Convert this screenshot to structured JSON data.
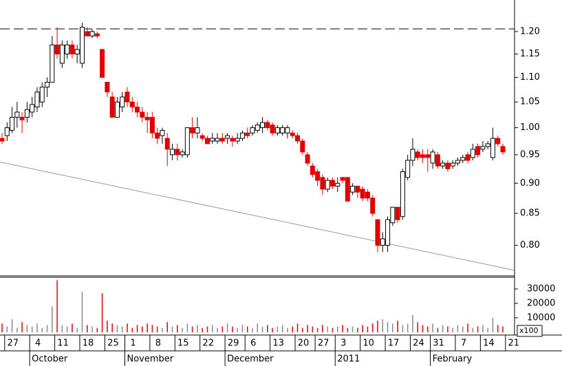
{
  "chart_data": [
    {
      "type": "candlestick",
      "log_scale": true,
      "up_color": "#ffffff",
      "down_color": "#e00000",
      "ylim": [
        0.755,
        1.274
      ],
      "yticks": [
        {
          "value": 0.8,
          "label": "0.80"
        },
        {
          "value": 0.85,
          "label": "0.85"
        },
        {
          "value": 0.9,
          "label": "0.90"
        },
        {
          "value": 0.95,
          "label": "0.95"
        },
        {
          "value": 1.0,
          "label": "1.00"
        },
        {
          "value": 1.05,
          "label": "1.05"
        },
        {
          "value": 1.1,
          "label": "1.10"
        },
        {
          "value": 1.15,
          "label": "1.15"
        },
        {
          "value": 1.2,
          "label": "1.20"
        }
      ],
      "reference_line": 1.206,
      "trendline": [
        0.937,
        0.763
      ],
      "xticks": [
        {
          "value": 1,
          "label": "27"
        },
        {
          "value": 6,
          "label": "4"
        },
        {
          "value": 11,
          "label": "11"
        },
        {
          "value": 16,
          "label": "18"
        },
        {
          "value": 21,
          "label": "25"
        },
        {
          "value": 25,
          "label": "1"
        },
        {
          "value": 30,
          "label": "8"
        },
        {
          "value": 35,
          "label": "15"
        },
        {
          "value": 40,
          "label": "22"
        },
        {
          "value": 45,
          "label": "29"
        },
        {
          "value": 49,
          "label": "6"
        },
        {
          "value": 54,
          "label": "13"
        },
        {
          "value": 59,
          "label": "20"
        },
        {
          "value": 63,
          "label": "27"
        },
        {
          "value": 67,
          "label": "3"
        },
        {
          "value": 72,
          "label": "10"
        },
        {
          "value": 77,
          "label": "17"
        },
        {
          "value": 82,
          "label": "24"
        },
        {
          "value": 86,
          "label": "31"
        },
        {
          "value": 91,
          "label": "7"
        },
        {
          "value": 96,
          "label": "14"
        },
        {
          "value": 101,
          "label": "21"
        }
      ],
      "month_labels": [
        {
          "value": 6,
          "label": "October"
        },
        {
          "value": 25,
          "label": "November"
        },
        {
          "value": 45,
          "label": "December"
        },
        {
          "value": 67,
          "label": "2011"
        },
        {
          "value": 86,
          "label": "February"
        }
      ],
      "open": [
        0.98,
        0.985,
        0.995,
        1.02,
        1.02,
        1.02,
        1.03,
        1.04,
        1.05,
        1.08,
        1.09,
        1.17,
        1.13,
        1.15,
        1.17,
        1.15,
        1.13,
        1.2,
        1.19,
        1.195,
        1.16,
        1.09,
        1.06,
        1.02,
        1.04,
        1.07,
        1.05,
        1.04,
        1.03,
        1.02,
        1.02,
        0.99,
        0.985,
        0.98,
        0.95,
        0.96,
        0.95,
        0.95,
        1.0,
        0.99,
        0.985,
        0.98,
        0.975,
        0.975,
        0.98,
        0.98,
        0.98,
        0.975,
        0.98,
        0.99,
        0.99,
        0.995,
        1.0,
        1.01,
        1.005,
        0.99,
        0.99,
        0.99,
        0.99,
        0.985,
        0.975,
        0.95,
        0.93,
        0.92,
        0.91,
        0.89,
        0.905,
        0.895,
        0.91,
        0.91,
        0.885,
        0.895,
        0.89,
        0.885,
        0.875,
        0.84,
        0.8,
        0.8,
        0.835,
        0.86,
        0.845,
        0.91,
        0.94,
        0.955,
        0.95,
        0.95,
        0.935,
        0.95,
        0.93,
        0.935,
        0.93,
        0.935,
        0.94,
        0.95,
        0.945,
        0.965,
        0.96,
        0.965,
        0.945,
        0.98,
        0.965
      ],
      "high": [
        0.99,
        1.01,
        1.04,
        1.05,
        1.03,
        1.05,
        1.06,
        1.08,
        1.09,
        1.1,
        1.19,
        1.21,
        1.18,
        1.18,
        1.18,
        1.17,
        1.22,
        1.21,
        1.205,
        1.2,
        1.16,
        1.09,
        1.07,
        1.06,
        1.07,
        1.08,
        1.06,
        1.05,
        1.04,
        1.03,
        1.03,
        1.0,
        1.0,
        0.99,
        0.97,
        0.97,
        0.96,
        1.0,
        1.02,
        1.02,
        0.99,
        0.985,
        0.99,
        0.99,
        0.99,
        0.99,
        0.985,
        0.99,
        0.995,
        1.0,
        1.005,
        1.01,
        1.02,
        1.015,
        1.01,
        1.005,
        1.005,
        1.005,
        0.995,
        0.99,
        0.98,
        0.955,
        0.935,
        0.925,
        0.915,
        0.91,
        0.91,
        0.91,
        0.91,
        0.91,
        0.9,
        0.895,
        0.895,
        0.89,
        0.88,
        0.84,
        0.82,
        0.845,
        0.86,
        0.86,
        0.925,
        0.95,
        0.98,
        0.96,
        0.96,
        0.96,
        0.96,
        0.955,
        0.94,
        0.94,
        0.94,
        0.945,
        0.95,
        0.955,
        0.97,
        0.97,
        0.975,
        0.975,
        1.0,
        0.985,
        0.97
      ],
      "low": [
        0.97,
        0.975,
        0.99,
        1.0,
        0.99,
        1.01,
        1.02,
        1.03,
        1.04,
        1.06,
        1.09,
        1.14,
        1.12,
        1.14,
        1.14,
        1.13,
        1.12,
        1.19,
        1.185,
        1.185,
        1.1,
        1.06,
        1.02,
        1.02,
        1.03,
        1.04,
        1.03,
        1.02,
        1.01,
        0.99,
        0.98,
        0.97,
        0.97,
        0.93,
        0.94,
        0.94,
        0.945,
        0.945,
        0.98,
        0.98,
        0.975,
        0.97,
        0.97,
        0.97,
        0.97,
        0.97,
        0.965,
        0.97,
        0.975,
        0.98,
        0.985,
        0.99,
        0.99,
        0.995,
        0.985,
        0.985,
        0.985,
        0.98,
        0.98,
        0.97,
        0.95,
        0.93,
        0.91,
        0.895,
        0.88,
        0.885,
        0.89,
        0.885,
        0.9,
        0.87,
        0.88,
        0.875,
        0.87,
        0.87,
        0.845,
        0.79,
        0.79,
        0.79,
        0.83,
        0.835,
        0.84,
        0.905,
        0.93,
        0.94,
        0.935,
        0.92,
        0.925,
        0.925,
        0.925,
        0.92,
        0.925,
        0.93,
        0.935,
        0.935,
        0.94,
        0.945,
        0.955,
        0.96,
        0.94,
        0.965,
        0.95
      ],
      "close": [
        0.975,
        1.0,
        1.02,
        1.03,
        1.015,
        1.035,
        1.045,
        1.07,
        1.08,
        1.09,
        1.17,
        1.15,
        1.17,
        1.17,
        1.15,
        1.16,
        1.21,
        1.19,
        1.2,
        1.19,
        1.1,
        1.07,
        1.02,
        1.05,
        1.06,
        1.05,
        1.04,
        1.03,
        1.02,
        1.015,
        0.99,
        0.98,
        0.995,
        0.96,
        0.96,
        0.95,
        0.955,
        1.0,
        0.99,
        1.0,
        0.98,
        0.97,
        0.98,
        0.98,
        0.975,
        0.985,
        0.975,
        0.98,
        0.99,
        0.985,
        1.0,
        1.005,
        1.01,
        1.0,
        0.99,
        1.0,
        1.0,
        1.0,
        0.985,
        0.975,
        0.955,
        0.935,
        0.915,
        0.905,
        0.89,
        0.905,
        0.895,
        0.9,
        0.905,
        0.87,
        0.895,
        0.885,
        0.875,
        0.875,
        0.85,
        0.8,
        0.81,
        0.84,
        0.86,
        0.84,
        0.92,
        0.94,
        0.96,
        0.945,
        0.945,
        0.945,
        0.955,
        0.93,
        0.935,
        0.925,
        0.935,
        0.94,
        0.945,
        0.94,
        0.96,
        0.95,
        0.965,
        0.97,
        0.98,
        0.97,
        0.955
      ]
    },
    {
      "type": "volume",
      "ylim": [
        0,
        37600
      ],
      "yticks": [
        10000,
        20000,
        30000
      ],
      "unit_label": "x100",
      "values": [
        6000,
        4000,
        9000,
        3000,
        7000,
        5000,
        4000,
        6000,
        3000,
        5000,
        18000,
        36000,
        5000,
        4000,
        6000,
        3000,
        28000,
        5000,
        4000,
        3000,
        27000,
        8000,
        6000,
        5000,
        4000,
        6000,
        3000,
        5000,
        4000,
        6000,
        5000,
        4000,
        3000,
        7000,
        4000,
        5000,
        3000,
        6000,
        4000,
        5000,
        3000,
        4000,
        5000,
        3000,
        4000,
        6000,
        4000,
        3000,
        5000,
        4000,
        3000,
        6000,
        4000,
        5000,
        3000,
        4000,
        5000,
        3000,
        4000,
        6000,
        3000,
        5000,
        4000,
        3000,
        5000,
        4000,
        3000,
        4000,
        5000,
        3000,
        4000,
        3000,
        5000,
        4000,
        6000,
        8000,
        9000,
        7000,
        6000,
        8000,
        5000,
        6000,
        12000,
        7000,
        5000,
        4000,
        6000,
        3000,
        5000,
        4000,
        3000,
        5000,
        4000,
        6000,
        3000,
        4000,
        5000,
        3000,
        10000,
        5000,
        4000
      ]
    }
  ]
}
